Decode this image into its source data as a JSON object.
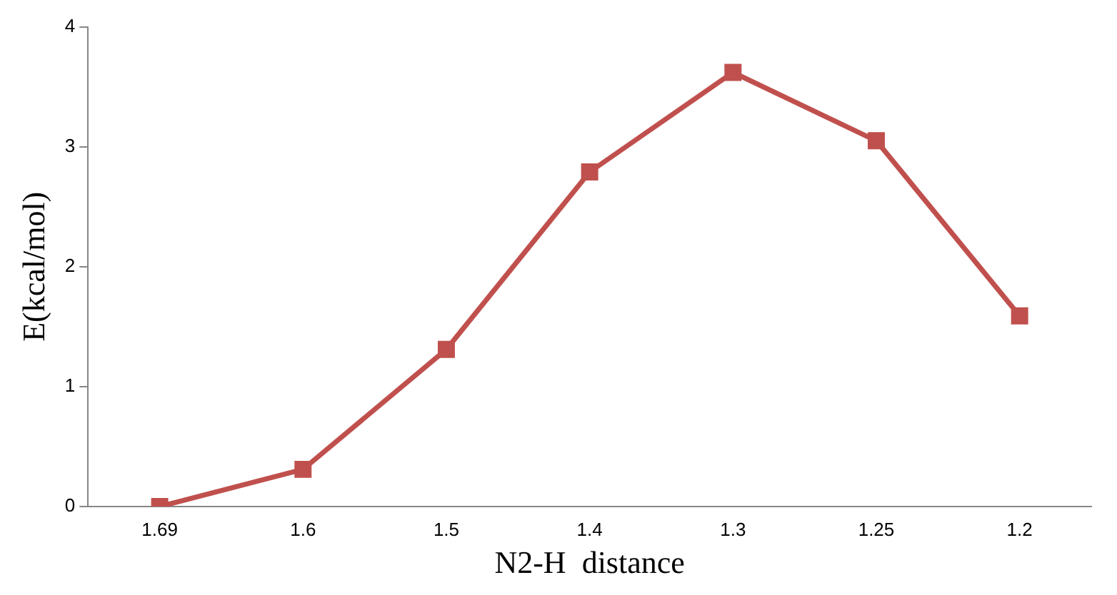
{
  "chart_data": {
    "type": "line",
    "xlabel": "N2-H  distance",
    "ylabel": "E(kcal/mol)",
    "categories": [
      "1.69",
      "1.6",
      "1.5",
      "1.4",
      "1.3",
      "1.25",
      "1.2"
    ],
    "series": [
      {
        "color": "#c0504d",
        "values": [
          0,
          0.31,
          1.31,
          2.79,
          3.62,
          3.05,
          1.59
        ]
      }
    ],
    "ylim": [
      0,
      4
    ],
    "yticks": [
      0,
      1,
      2,
      3,
      4
    ],
    "grid": false,
    "legend": false,
    "marker": "square",
    "line_style": "solid"
  }
}
